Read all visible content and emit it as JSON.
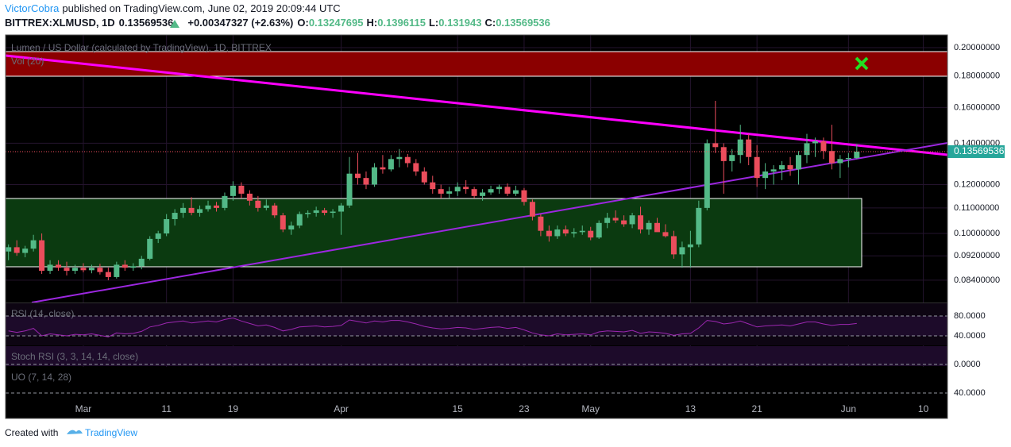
{
  "chart_data": {
    "type": "candlestick",
    "author": "VictorCobra",
    "published": "published on TradingView.com, June 02, 2019 20:09:44 UTC",
    "symbol": "BITTREX:XLMUSD, 1D",
    "change": "+0.00347327 (+2.63%)",
    "ohlc_labels": [
      "O:",
      "H:",
      "L:",
      "C:"
    ],
    "title": "Lumen / US Dollar (calculated by TradingView), 1D, BITTREX",
    "volume_label": "Vol (20)",
    "up_color": "#53b987",
    "down_color": "#eb4d5c",
    "log_scale": true,
    "grid": true,
    "x": [
      "2019-02-20",
      "2019-02-21",
      "2019-02-22",
      "2019-02-23",
      "2019-02-24",
      "2019-02-25",
      "2019-02-26",
      "2019-02-27",
      "2019-02-28",
      "2019-03-01",
      "2019-03-02",
      "2019-03-03",
      "2019-03-04",
      "2019-03-05",
      "2019-03-06",
      "2019-03-07",
      "2019-03-08",
      "2019-03-09",
      "2019-03-10",
      "2019-03-11",
      "2019-03-12",
      "2019-03-13",
      "2019-03-14",
      "2019-03-15",
      "2019-03-16",
      "2019-03-17",
      "2019-03-18",
      "2019-03-19",
      "2019-03-20",
      "2019-03-21",
      "2019-03-22",
      "2019-03-23",
      "2019-03-24",
      "2019-03-25",
      "2019-03-26",
      "2019-03-27",
      "2019-03-28",
      "2019-03-29",
      "2019-03-30",
      "2019-03-31",
      "2019-04-01",
      "2019-04-02",
      "2019-04-03",
      "2019-04-04",
      "2019-04-05",
      "2019-04-06",
      "2019-04-07",
      "2019-04-08",
      "2019-04-09",
      "2019-04-10",
      "2019-04-11",
      "2019-04-12",
      "2019-04-13",
      "2019-04-14",
      "2019-04-15",
      "2019-04-16",
      "2019-04-17",
      "2019-04-18",
      "2019-04-19",
      "2019-04-20",
      "2019-04-21",
      "2019-04-22",
      "2019-04-23",
      "2019-04-24",
      "2019-04-25",
      "2019-04-26",
      "2019-04-27",
      "2019-04-28",
      "2019-04-29",
      "2019-04-30",
      "2019-05-01",
      "2019-05-02",
      "2019-05-03",
      "2019-05-04",
      "2019-05-05",
      "2019-05-06",
      "2019-05-07",
      "2019-05-08",
      "2019-05-09",
      "2019-05-10",
      "2019-05-11",
      "2019-05-12",
      "2019-05-13",
      "2019-05-14",
      "2019-05-15",
      "2019-05-16",
      "2019-05-17",
      "2019-05-18",
      "2019-05-19",
      "2019-05-20",
      "2019-05-21",
      "2019-05-22",
      "2019-05-23",
      "2019-05-24",
      "2019-05-25",
      "2019-05-26",
      "2019-05-27",
      "2019-05-28",
      "2019-05-29",
      "2019-05-30",
      "2019-05-31",
      "2019-06-01",
      "2019-06-02"
    ],
    "open": [
      0.0935,
      0.095,
      0.093,
      0.0945,
      0.0975,
      0.087,
      0.089,
      0.088,
      0.087,
      0.088,
      0.0872,
      0.088,
      0.0866,
      0.085,
      0.089,
      0.088,
      0.0885,
      0.091,
      0.098,
      0.1,
      0.1055,
      0.108,
      0.11,
      0.108,
      0.1095,
      0.111,
      0.11,
      0.115,
      0.1195,
      0.116,
      0.113,
      0.11,
      0.111,
      0.107,
      0.1015,
      0.103,
      0.1075,
      0.108,
      0.109,
      0.108,
      0.1085,
      0.111,
      0.125,
      0.123,
      0.12,
      0.128,
      0.127,
      0.132,
      0.133,
      0.13,
      0.126,
      0.121,
      0.118,
      0.116,
      0.117,
      0.119,
      0.118,
      0.115,
      0.1165,
      0.118,
      0.119,
      0.116,
      0.1175,
      0.1125,
      0.1065,
      0.101,
      0.099,
      0.1015,
      0.1,
      0.1005,
      0.101,
      0.0985,
      0.104,
      0.106,
      0.105,
      0.1035,
      0.107,
      0.1015,
      0.104,
      0.1005,
      0.099,
      0.0925,
      0.095,
      0.096,
      0.11,
      0.14,
      0.138,
      0.131,
      0.134,
      0.142,
      0.133,
      0.123,
      0.126,
      0.127,
      0.129,
      0.127,
      0.134,
      0.14,
      0.141,
      0.136,
      0.13,
      0.132,
      0.13247695
    ],
    "high": [
      0.096,
      0.0975,
      0.0955,
      0.0995,
      0.1,
      0.0905,
      0.0905,
      0.09,
      0.089,
      0.0895,
      0.089,
      0.0893,
      0.088,
      0.09,
      0.0905,
      0.0895,
      0.092,
      0.099,
      0.101,
      0.1075,
      0.1095,
      0.112,
      0.1145,
      0.111,
      0.113,
      0.1125,
      0.1165,
      0.1215,
      0.121,
      0.1175,
      0.115,
      0.1135,
      0.112,
      0.108,
      0.1045,
      0.1085,
      0.109,
      0.1105,
      0.11,
      0.1095,
      0.112,
      0.133,
      0.135,
      0.126,
      0.13,
      0.134,
      0.134,
      0.137,
      0.1345,
      0.132,
      0.128,
      0.124,
      0.12,
      0.119,
      0.121,
      0.122,
      0.119,
      0.118,
      0.1195,
      0.12,
      0.1205,
      0.1195,
      0.1185,
      0.1135,
      0.1075,
      0.103,
      0.103,
      0.103,
      0.102,
      0.103,
      0.1025,
      0.105,
      0.108,
      0.109,
      0.107,
      0.108,
      0.1105,
      0.105,
      0.106,
      0.1035,
      0.101,
      0.097,
      0.101,
      0.113,
      0.142,
      0.164,
      0.14,
      0.137,
      0.15,
      0.145,
      0.139,
      0.13,
      0.129,
      0.131,
      0.133,
      0.136,
      0.145,
      0.143,
      0.143,
      0.15,
      0.134,
      0.135,
      0.1396115
    ],
    "low": [
      0.0905,
      0.092,
      0.0915,
      0.0935,
      0.086,
      0.086,
      0.087,
      0.0855,
      0.086,
      0.0865,
      0.0862,
      0.0858,
      0.084,
      0.0845,
      0.087,
      0.087,
      0.0875,
      0.0905,
      0.0965,
      0.099,
      0.103,
      0.106,
      0.107,
      0.1065,
      0.1085,
      0.1085,
      0.109,
      0.113,
      0.114,
      0.111,
      0.1085,
      0.109,
      0.106,
      0.1005,
      0.0995,
      0.102,
      0.106,
      0.1065,
      0.107,
      0.106,
      0.0995,
      0.11,
      0.12,
      0.118,
      0.119,
      0.125,
      0.126,
      0.128,
      0.128,
      0.124,
      0.12,
      0.116,
      0.114,
      0.114,
      0.115,
      0.116,
      0.114,
      0.113,
      0.1155,
      0.116,
      0.115,
      0.115,
      0.111,
      0.105,
      0.099,
      0.097,
      0.098,
      0.099,
      0.0985,
      0.0995,
      0.0975,
      0.098,
      0.102,
      0.104,
      0.1025,
      0.102,
      0.1,
      0.0995,
      0.101,
      0.0985,
      0.091,
      0.088,
      0.088,
      0.095,
      0.109,
      0.135,
      0.116,
      0.126,
      0.13,
      0.129,
      0.119,
      0.118,
      0.12,
      0.122,
      0.124,
      0.12,
      0.13,
      0.133,
      0.132,
      0.127,
      0.123,
      0.128,
      0.131943
    ],
    "close": [
      0.095,
      0.093,
      0.0945,
      0.0975,
      0.087,
      0.089,
      0.088,
      0.087,
      0.088,
      0.0872,
      0.088,
      0.0866,
      0.085,
      0.089,
      0.088,
      0.0885,
      0.091,
      0.098,
      0.1,
      0.1055,
      0.108,
      0.11,
      0.108,
      0.1095,
      0.111,
      0.11,
      0.115,
      0.1195,
      0.116,
      0.113,
      0.11,
      0.111,
      0.107,
      0.1015,
      0.103,
      0.1075,
      0.108,
      0.109,
      0.108,
      0.1085,
      0.111,
      0.125,
      0.123,
      0.12,
      0.128,
      0.127,
      0.132,
      0.133,
      0.13,
      0.126,
      0.121,
      0.118,
      0.116,
      0.117,
      0.119,
      0.118,
      0.115,
      0.1165,
      0.118,
      0.119,
      0.116,
      0.1175,
      0.1125,
      0.1065,
      0.101,
      0.099,
      0.1015,
      0.1,
      0.1005,
      0.101,
      0.0985,
      0.104,
      0.106,
      0.105,
      0.1035,
      0.107,
      0.1015,
      0.104,
      0.1005,
      0.099,
      0.0925,
      0.095,
      0.096,
      0.11,
      0.14,
      0.138,
      0.131,
      0.134,
      0.142,
      0.133,
      0.123,
      0.126,
      0.127,
      0.129,
      0.127,
      0.134,
      0.14,
      0.141,
      0.136,
      0.13,
      0.132,
      0.1325,
      0.13569536
    ],
    "xlim": [
      "2019-02-20",
      "2019-06-13"
    ],
    "xticks": [
      {
        "value": "2019-03-01",
        "label": "Mar"
      },
      {
        "value": "2019-03-11",
        "label": "11"
      },
      {
        "value": "2019-03-19",
        "label": "19"
      },
      {
        "value": "2019-04-01",
        "label": "Apr"
      },
      {
        "value": "2019-04-15",
        "label": "15"
      },
      {
        "value": "2019-04-23",
        "label": "23"
      },
      {
        "value": "2019-05-01",
        "label": "May"
      },
      {
        "value": "2019-05-13",
        "label": "13"
      },
      {
        "value": "2019-05-21",
        "label": "21"
      },
      {
        "value": "2019-06-01",
        "label": "Jun"
      },
      {
        "value": "2019-06-10",
        "label": "10"
      }
    ],
    "ylim": [
      0.0773,
      0.2097
    ],
    "yticks": [
      {
        "value": 0.2,
        "label": "0.20000000"
      },
      {
        "value": 0.18,
        "label": "0.18000000"
      },
      {
        "value": 0.16,
        "label": "0.16000000"
      },
      {
        "value": 0.14,
        "label": "0.14000000"
      },
      {
        "value": 0.12,
        "label": "0.12000000"
      },
      {
        "value": 0.11,
        "label": "0.11000000"
      },
      {
        "value": 0.1,
        "label": "0.10000000"
      },
      {
        "value": 0.092,
        "label": "0.09200000"
      },
      {
        "value": 0.084,
        "label": "0.08400000"
      }
    ],
    "indicators": [
      {
        "name": "RSI (14, close)",
        "color": "#9c27b0",
        "ylim": [
          20.8,
          105.6
        ],
        "yticks": [
          {
            "value": 80,
            "label": "80.0000"
          },
          {
            "value": 40,
            "label": "40.0000"
          }
        ],
        "values": [
          50,
          47,
          50,
          55,
          40,
          44,
          42,
          40,
          43,
          42,
          44,
          41,
          38,
          46,
          44,
          45,
          49,
          58,
          61,
          66,
          68,
          70,
          66,
          68,
          70,
          68,
          73,
          76,
          70,
          65,
          60,
          62,
          57,
          50,
          53,
          58,
          59,
          60,
          58,
          59,
          61,
          72,
          69,
          66,
          70,
          68,
          71,
          71,
          68,
          64,
          59,
          56,
          54,
          55,
          57,
          56,
          53,
          55,
          57,
          58,
          55,
          57,
          52,
          46,
          42,
          40,
          44,
          42,
          43,
          44,
          42,
          48,
          50,
          49,
          48,
          51,
          45,
          48,
          47,
          45,
          41,
          44,
          45,
          56,
          71,
          69,
          64,
          66,
          70,
          64,
          58,
          60,
          61,
          62,
          60,
          64,
          68,
          68,
          64,
          61,
          63,
          63,
          65
        ]
      },
      {
        "name": "Stoch RSI (3, 3, 14, 14, close)",
        "ylim": [
          -10.7,
          122.7
        ],
        "yticks": [
          {
            "value": 0,
            "label": "0.0000"
          }
        ]
      },
      {
        "name": "UO (7, 14, 28)",
        "ylim": [
          28,
          73
        ],
        "yticks": [
          {
            "value": 40,
            "label": "40.0000"
          }
        ]
      }
    ],
    "footer": {
      "text": "Created with",
      "brand": "TradingView"
    }
  }
}
